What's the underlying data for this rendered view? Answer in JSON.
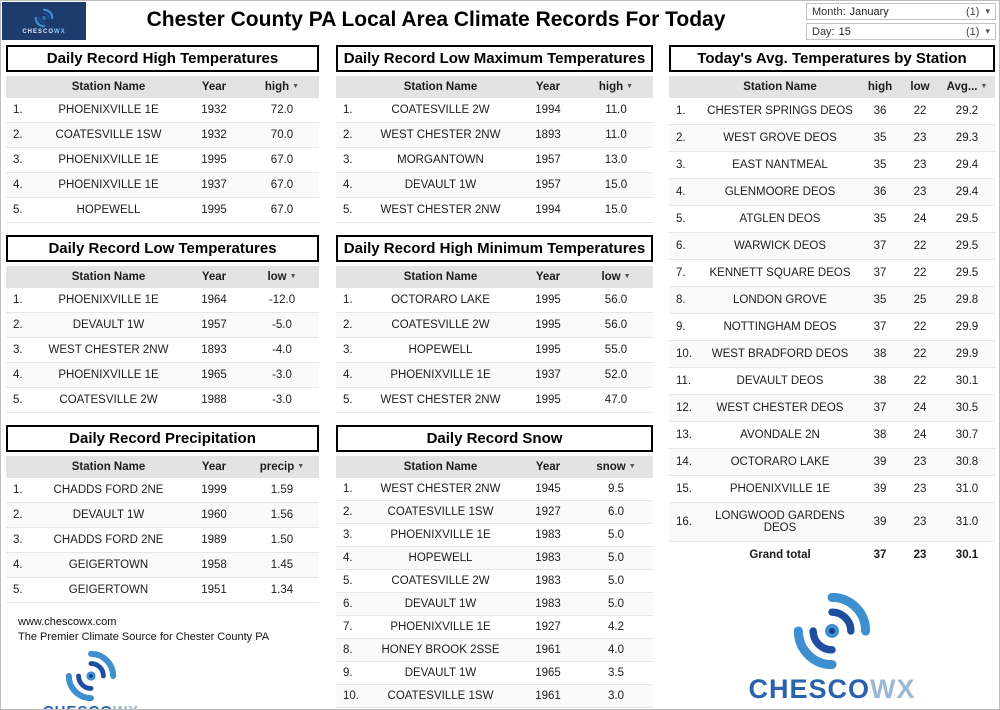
{
  "brand": {
    "chesco": "CHESCO",
    "wx": "WX"
  },
  "header": {
    "title": "Chester County PA Local Area Climate Records For Today",
    "month": {
      "label": "Month:",
      "value": "January",
      "count": "(1)"
    },
    "day": {
      "label": "Day:",
      "value": "15",
      "count": "(1)"
    }
  },
  "tables": {
    "record_high": {
      "title": "Daily Record High Temperatures",
      "columns": [
        "Station Name",
        "Year",
        "high"
      ],
      "sort_column": 2,
      "rows": [
        [
          "PHOENIXVILLE 1E",
          "1932",
          "72.0"
        ],
        [
          "COATESVILLE 1SW",
          "1932",
          "70.0"
        ],
        [
          "PHOENIXVILLE 1E",
          "1995",
          "67.0"
        ],
        [
          "PHOENIXVILLE 1E",
          "1937",
          "67.0"
        ],
        [
          "HOPEWELL",
          "1995",
          "67.0"
        ]
      ]
    },
    "record_low": {
      "title": "Daily Record Low Temperatures",
      "columns": [
        "Station Name",
        "Year",
        "low"
      ],
      "sort_column": 2,
      "rows": [
        [
          "PHOENIXVILLE 1E",
          "1964",
          "-12.0"
        ],
        [
          "DEVAULT 1W",
          "1957",
          "-5.0"
        ],
        [
          "WEST CHESTER 2NW",
          "1893",
          "-4.0"
        ],
        [
          "PHOENIXVILLE 1E",
          "1965",
          "-3.0"
        ],
        [
          "COATESVILLE 2W",
          "1988",
          "-3.0"
        ]
      ]
    },
    "precip": {
      "title": "Daily Record Precipitation",
      "columns": [
        "Station Name",
        "Year",
        "precip"
      ],
      "sort_column": 2,
      "rows": [
        [
          "CHADDS FORD 2NE",
          "1999",
          "1.59"
        ],
        [
          "DEVAULT 1W",
          "1960",
          "1.56"
        ],
        [
          "CHADDS FORD 2NE",
          "1989",
          "1.50"
        ],
        [
          "GEIGERTOWN",
          "1958",
          "1.45"
        ],
        [
          "GEIGERTOWN",
          "1951",
          "1.34"
        ]
      ]
    },
    "record_low_max": {
      "title": "Daily Record Low Maximum Temperatures",
      "columns": [
        "Station Name",
        "Year",
        "high"
      ],
      "sort_column": 2,
      "rows": [
        [
          "COATESVILLE 2W",
          "1994",
          "11.0"
        ],
        [
          "WEST CHESTER 2NW",
          "1893",
          "11.0"
        ],
        [
          "MORGANTOWN",
          "1957",
          "13.0"
        ],
        [
          "DEVAULT 1W",
          "1957",
          "15.0"
        ],
        [
          "WEST CHESTER 2NW",
          "1994",
          "15.0"
        ]
      ]
    },
    "record_high_min": {
      "title": "Daily Record High Minimum Temperatures",
      "columns": [
        "Station Name",
        "Year",
        "low"
      ],
      "sort_column": 2,
      "rows": [
        [
          "OCTORARO LAKE",
          "1995",
          "56.0"
        ],
        [
          "COATESVILLE 2W",
          "1995",
          "56.0"
        ],
        [
          "HOPEWELL",
          "1995",
          "55.0"
        ],
        [
          "PHOENIXVILLE 1E",
          "1937",
          "52.0"
        ],
        [
          "WEST CHESTER 2NW",
          "1995",
          "47.0"
        ]
      ]
    },
    "snow": {
      "title": "Daily Record Snow",
      "columns": [
        "Station Name",
        "Year",
        "snow"
      ],
      "sort_column": 2,
      "rows": [
        [
          "WEST CHESTER 2NW",
          "1945",
          "9.5"
        ],
        [
          "COATESVILLE 1SW",
          "1927",
          "6.0"
        ],
        [
          "PHOENIXVILLE 1E",
          "1983",
          "5.0"
        ],
        [
          "HOPEWELL",
          "1983",
          "5.0"
        ],
        [
          "COATESVILLE 2W",
          "1983",
          "5.0"
        ],
        [
          "DEVAULT 1W",
          "1983",
          "5.0"
        ],
        [
          "PHOENIXVILLE 1E",
          "1927",
          "4.2"
        ],
        [
          "HONEY BROOK 2SSE",
          "1961",
          "4.0"
        ],
        [
          "DEVAULT 1W",
          "1965",
          "3.5"
        ],
        [
          "COATESVILLE 1SW",
          "1961",
          "3.0"
        ]
      ]
    },
    "avg_by_station": {
      "title": "Today's Avg. Temperatures by Station",
      "columns": [
        "Station Name",
        "high",
        "low",
        "Avg..."
      ],
      "sort_column": 3,
      "rows": [
        [
          "CHESTER SPRINGS DEOS",
          "36",
          "22",
          "29.2"
        ],
        [
          "WEST GROVE DEOS",
          "35",
          "23",
          "29.3"
        ],
        [
          "EAST NANTMEAL",
          "35",
          "23",
          "29.4"
        ],
        [
          "GLENMOORE DEOS",
          "36",
          "23",
          "29.4"
        ],
        [
          "ATGLEN DEOS",
          "35",
          "24",
          "29.5"
        ],
        [
          "WARWICK DEOS",
          "37",
          "22",
          "29.5"
        ],
        [
          "KENNETT SQUARE DEOS",
          "37",
          "22",
          "29.5"
        ],
        [
          "LONDON GROVE",
          "35",
          "25",
          "29.8"
        ],
        [
          "NOTTINGHAM DEOS",
          "37",
          "22",
          "29.9"
        ],
        [
          "WEST BRADFORD DEOS",
          "38",
          "22",
          "29.9"
        ],
        [
          "DEVAULT DEOS",
          "38",
          "22",
          "30.1"
        ],
        [
          "WEST CHESTER DEOS",
          "37",
          "24",
          "30.5"
        ],
        [
          "AVONDALE 2N",
          "38",
          "24",
          "30.7"
        ],
        [
          "OCTORARO LAKE",
          "39",
          "23",
          "30.8"
        ],
        [
          "PHOENIXVILLE 1E",
          "39",
          "23",
          "31.0"
        ],
        [
          "LONGWOOD GARDENS DEOS",
          "39",
          "23",
          "31.0"
        ]
      ],
      "total": [
        "Grand total",
        "37",
        "23",
        "30.1"
      ]
    }
  },
  "footer": {
    "website": "www.chescowx.com",
    "tagline": "The Premier Climate Source for Chester County PA"
  }
}
